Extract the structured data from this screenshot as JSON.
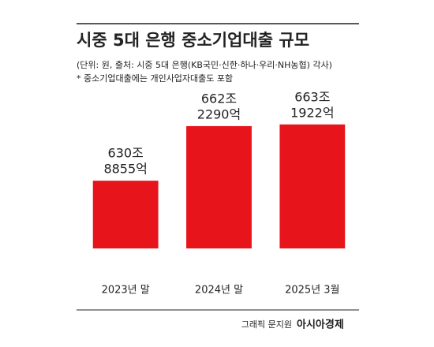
{
  "chart_data": {
    "type": "bar",
    "title": "시중 5대 은행 중소기업대출 규모",
    "subtitle": "(단위: 원, 출처: 시중 5대 은행(KB국민·신한·하나·우리·NH농협) 각사)",
    "note": "* 중소기업대출에는 개인사업자대출도 포함",
    "categories": [
      "2023년 말",
      "2024년 말",
      "2025년 3월"
    ],
    "values": [
      630.8855,
      662.229,
      663.1922
    ],
    "value_labels": [
      [
        "630조",
        "8855억"
      ],
      [
        "662조",
        "2290억"
      ],
      [
        "663조",
        "1922억"
      ]
    ],
    "color": "#e8141b",
    "ylim": [
      592,
      664
    ],
    "credit": "그래픽 문지원",
    "brand": "아시아경제"
  }
}
